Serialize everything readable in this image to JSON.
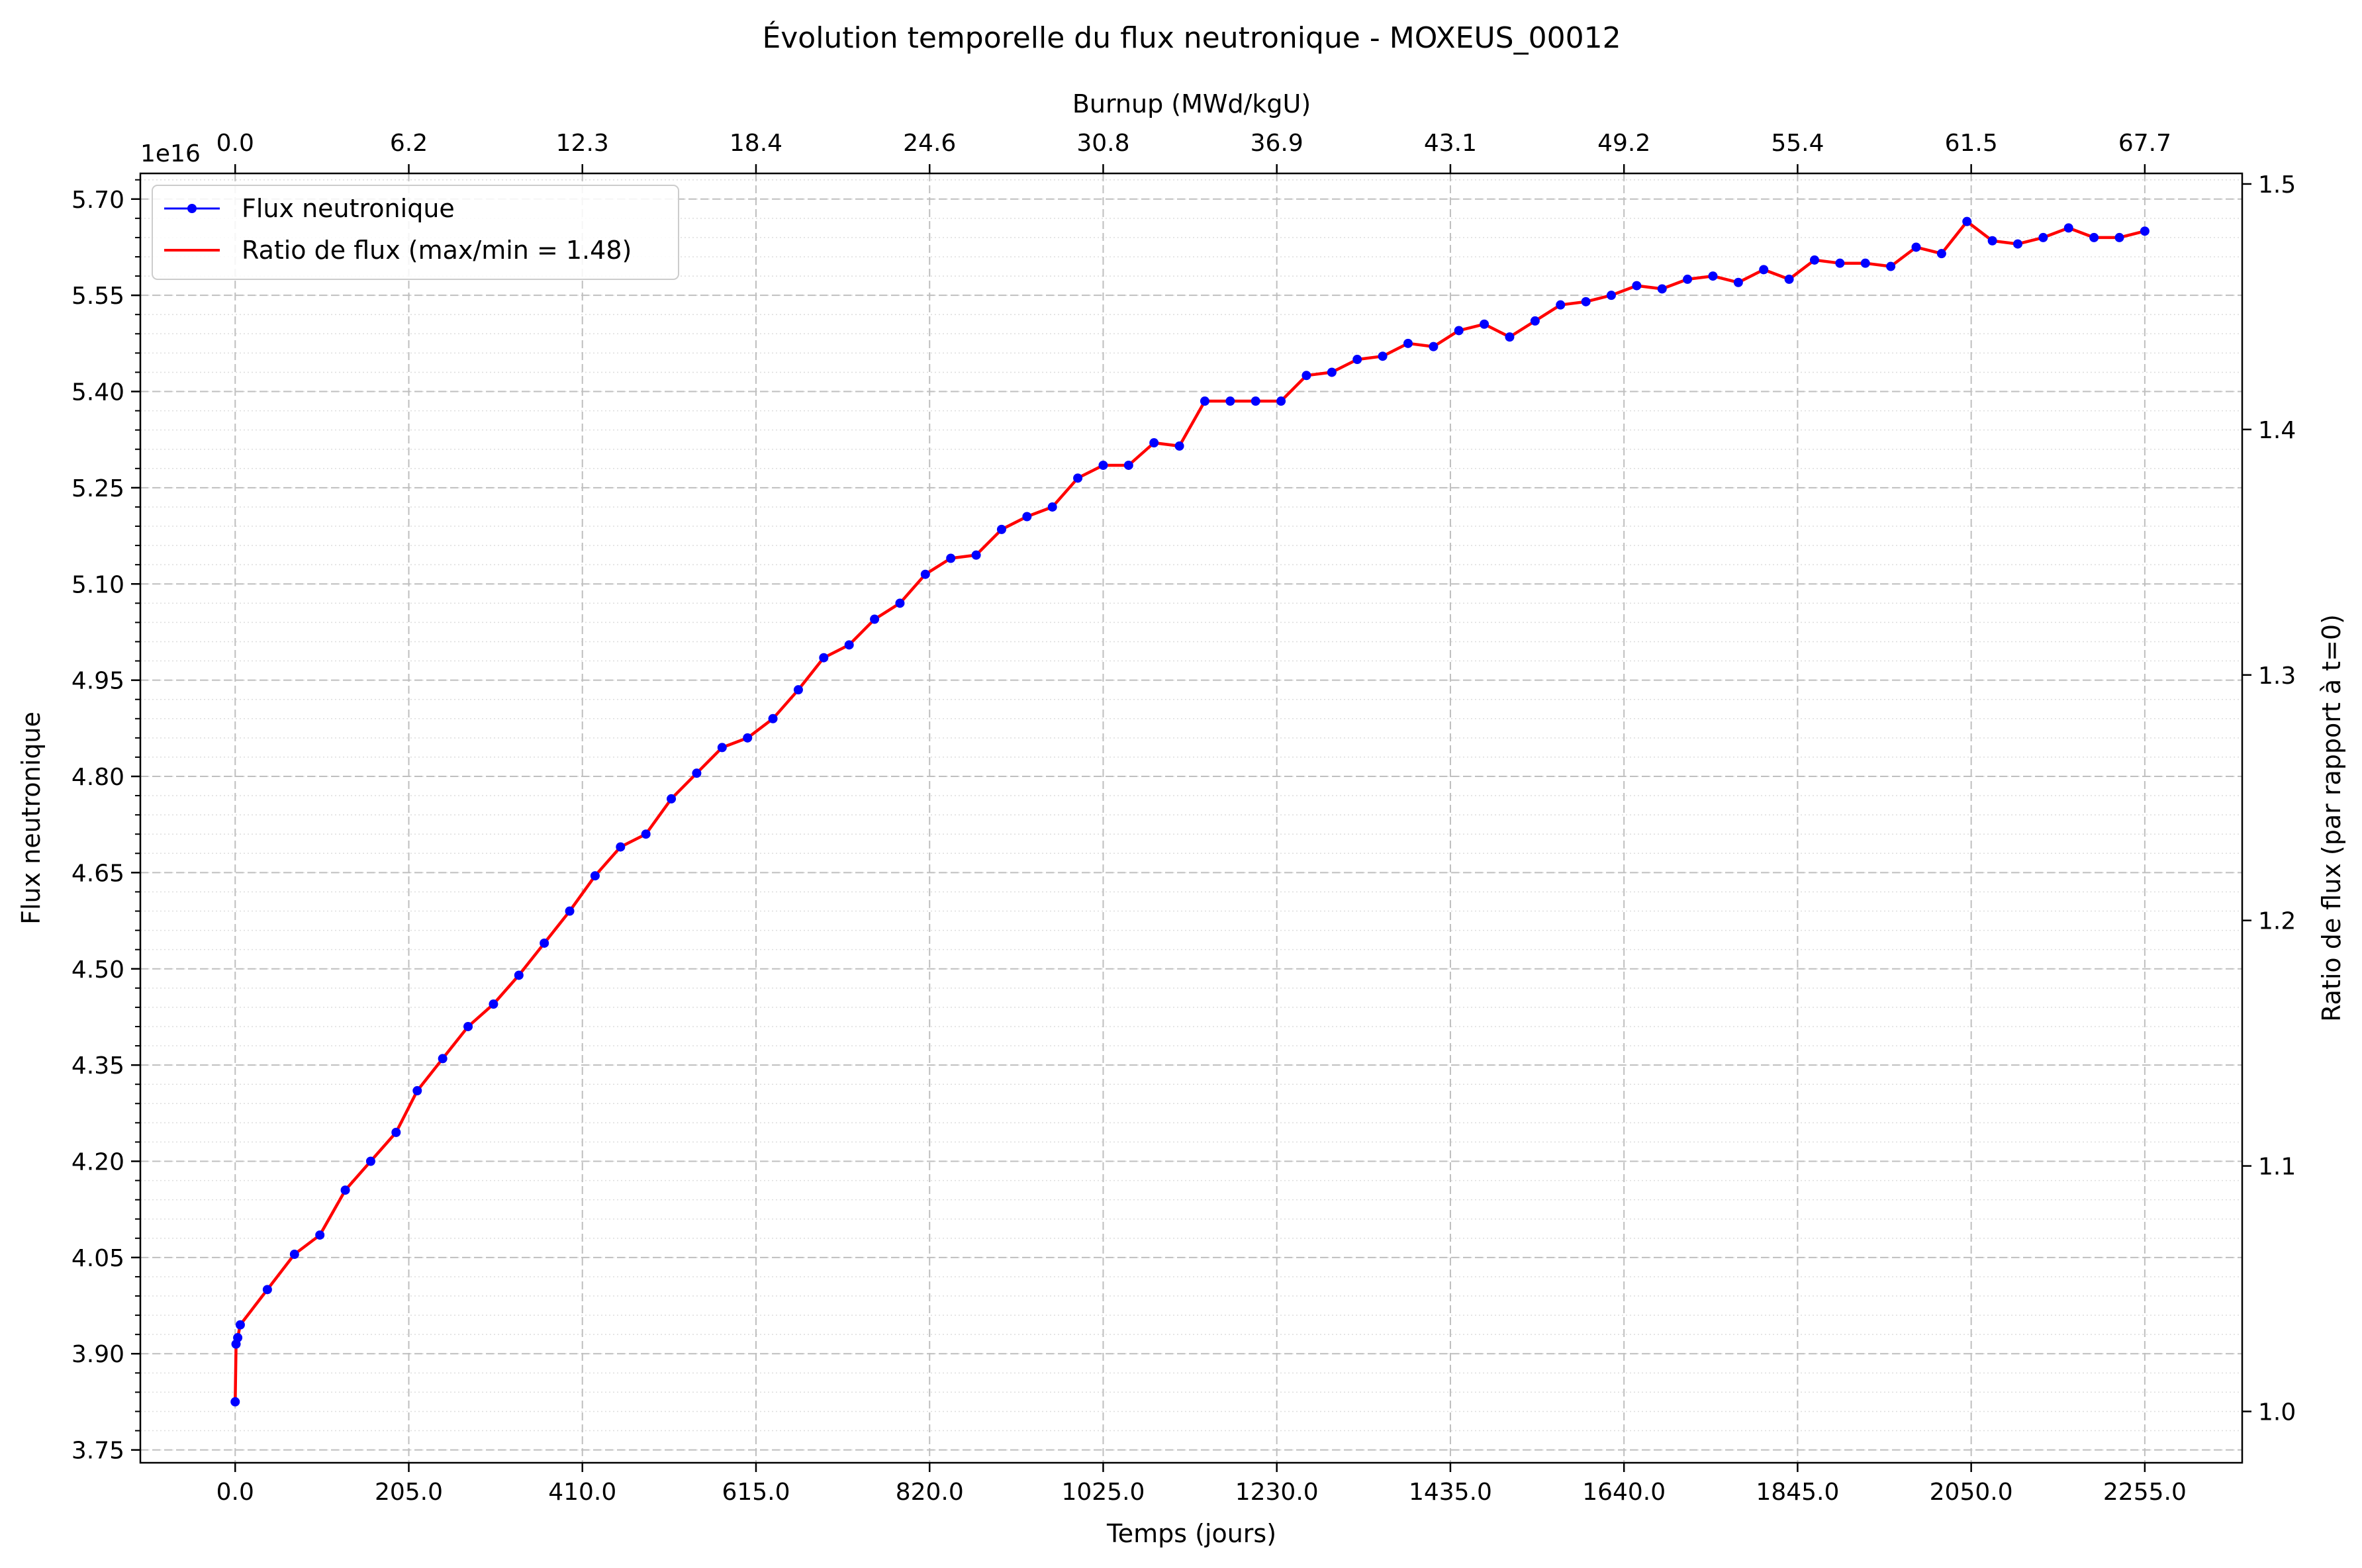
{
  "chart_data": {
    "type": "line",
    "title": "Évolution temporelle du flux neutronique - MOXEUS_00012",
    "xlabel": "Temps (jours)",
    "ylabel": "Flux neutronique",
    "y2label": "Ratio de flux (par rapport à t=0)",
    "x2label": "Burnup (MWd/kgU)",
    "y_offset_text": "1e16",
    "xlim": [
      -112,
      2370
    ],
    "ylim": [
      3.73,
      5.74
    ],
    "y2lim": [
      0.9791,
      1.5043
    ],
    "x_ticks": [
      0,
      205,
      410,
      615,
      820,
      1025,
      1230,
      1435,
      1640,
      1845,
      2050,
      2255
    ],
    "x_tick_labels": [
      "0.0",
      "205.0",
      "410.0",
      "615.0",
      "820.0",
      "1025.0",
      "1230.0",
      "1435.0",
      "1640.0",
      "1845.0",
      "2050.0",
      "2255.0"
    ],
    "x2_tick_labels": [
      "0.0",
      "6.2",
      "12.3",
      "18.4",
      "24.6",
      "30.8",
      "36.9",
      "43.1",
      "49.2",
      "55.4",
      "61.5",
      "67.7"
    ],
    "y_ticks": [
      3.75,
      3.9,
      4.05,
      4.2,
      4.35,
      4.5,
      4.65,
      4.8,
      4.95,
      5.1,
      5.25,
      5.4,
      5.55,
      5.7
    ],
    "y_tick_labels": [
      "3.75",
      "3.90",
      "4.05",
      "4.20",
      "4.35",
      "4.50",
      "4.65",
      "4.80",
      "4.95",
      "5.10",
      "5.25",
      "5.40",
      "5.55",
      "5.70"
    ],
    "y2_ticks": [
      1.0,
      1.1,
      1.2,
      1.3,
      1.4,
      1.5
    ],
    "y2_tick_labels": [
      "1.0",
      "1.1",
      "1.2",
      "1.3",
      "1.4",
      "1.5"
    ],
    "grid": true,
    "legend_position": "top-left",
    "series": [
      {
        "name": "Flux neutronique",
        "color": "#0000ff",
        "marker": "circle",
        "x": [
          0,
          1,
          3,
          6,
          38,
          70,
          100,
          130,
          160,
          190,
          215,
          245,
          275,
          305,
          335,
          365,
          395,
          425,
          455,
          485,
          515,
          545,
          575,
          605,
          635,
          665,
          695,
          725,
          755,
          785,
          815,
          845,
          875,
          905,
          935,
          965,
          995,
          1025,
          1055,
          1085,
          1115,
          1145,
          1175,
          1205,
          1235,
          1265,
          1295,
          1325,
          1355,
          1385,
          1415,
          1445,
          1475,
          1505,
          1535,
          1565,
          1595,
          1625,
          1655,
          1685,
          1715,
          1745,
          1775,
          1805,
          1835,
          1865,
          1895,
          1925,
          1955,
          1985,
          2015,
          2045,
          2075,
          2105,
          2135,
          2165,
          2195,
          2225,
          2255
        ],
        "values": [
          3.825,
          3.915,
          3.925,
          3.945,
          4.0,
          4.055,
          4.085,
          4.155,
          4.2,
          4.245,
          4.31,
          4.36,
          4.41,
          4.445,
          4.49,
          4.54,
          4.59,
          4.645,
          4.69,
          4.71,
          4.765,
          4.805,
          4.845,
          4.86,
          4.89,
          4.935,
          4.985,
          5.005,
          5.045,
          5.07,
          5.115,
          5.14,
          5.145,
          5.185,
          5.205,
          5.22,
          5.265,
          5.285,
          5.285,
          5.32,
          5.315,
          5.385,
          5.385,
          5.385,
          5.385,
          5.425,
          5.43,
          5.45,
          5.455,
          5.475,
          5.47,
          5.495,
          5.505,
          5.485,
          5.51,
          5.535,
          5.54,
          5.55,
          5.565,
          5.56,
          5.575,
          5.58,
          5.57,
          5.59,
          5.575,
          5.605,
          5.6,
          5.6,
          5.595,
          5.625,
          5.615,
          5.665,
          5.635,
          5.63,
          5.64,
          5.655,
          5.64,
          5.64,
          5.65
        ]
      },
      {
        "name": "Ratio de flux (max/min = 1.48)",
        "color": "#ff0000",
        "axis": "right"
      }
    ]
  }
}
